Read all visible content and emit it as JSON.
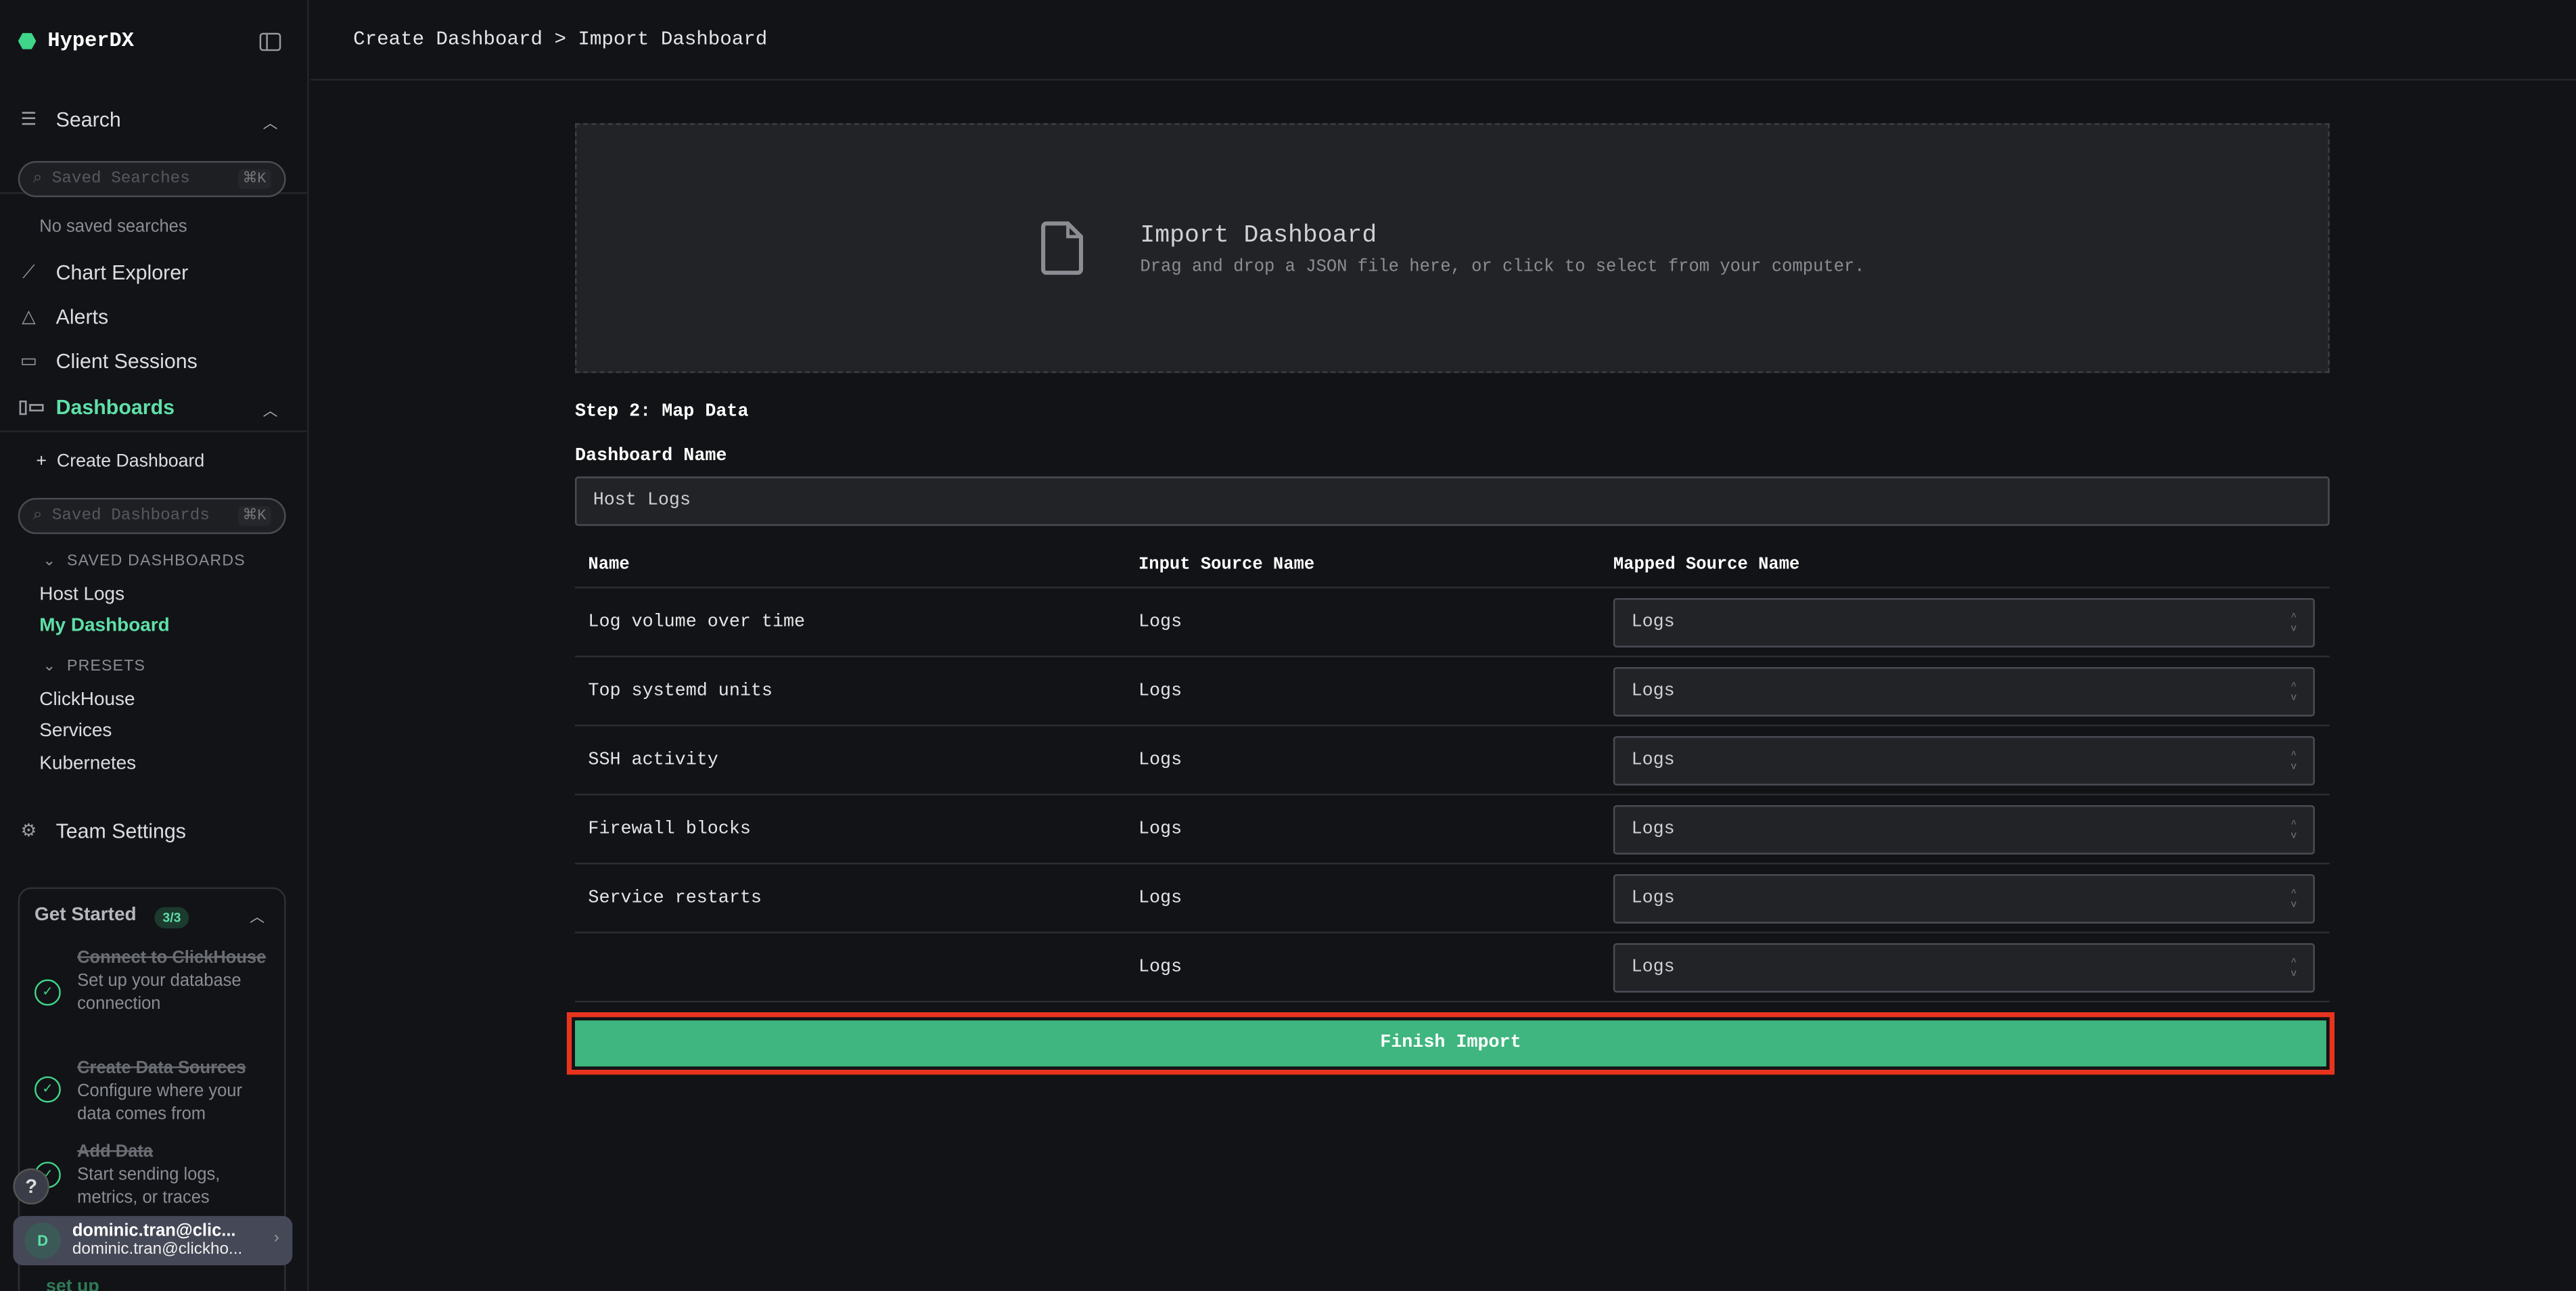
{
  "app": {
    "name": "HyperDX",
    "accent": "#5ee0a9"
  },
  "sidebar": {
    "search": {
      "label": "Search",
      "placeholder": "Saved Searches",
      "shortcut": "⌘K",
      "empty": "No saved searches"
    },
    "nav": [
      {
        "label": "Chart Explorer",
        "icon": "chart-line-icon"
      },
      {
        "label": "Alerts",
        "icon": "bell-icon"
      },
      {
        "label": "Client Sessions",
        "icon": "laptop-icon"
      }
    ],
    "dashboards": {
      "label": "Dashboards",
      "create": "Create Dashboard",
      "placeholder": "Saved Dashboards",
      "shortcut": "⌘K",
      "saved_header": "SAVED DASHBOARDS",
      "saved": [
        "Host Logs",
        "My Dashboard"
      ],
      "presets_header": "PRESETS",
      "presets": [
        "ClickHouse",
        "Services",
        "Kubernetes"
      ]
    },
    "team_settings": "Team Settings",
    "get_started": {
      "title": "Get Started",
      "badge": "3/3",
      "steps": [
        {
          "title": "Connect to ClickHouse",
          "desc": "Set up your database connection"
        },
        {
          "title": "Create Data Sources",
          "desc": "Configure where your data comes from"
        },
        {
          "title": "Add Data",
          "desc": "Start sending logs, metrics, or traces"
        }
      ],
      "done": "set up"
    },
    "user": {
      "initial": "D",
      "name": "dominic.tran@clic...",
      "email": "dominic.tran@clickho..."
    }
  },
  "header": {
    "breadcrumb": "Create Dashboard > Import Dashboard"
  },
  "dropzone": {
    "title": "Import Dashboard",
    "subtitle": "Drag and drop a JSON file here, or click to select from your computer."
  },
  "form": {
    "step": "Step 2: Map Data",
    "name_label": "Dashboard Name",
    "name_value": "Host Logs",
    "columns": [
      "Name",
      "Input Source Name",
      "Mapped Source Name"
    ],
    "rows": [
      {
        "name": "Log volume over time",
        "input": "Logs",
        "mapped": "Logs"
      },
      {
        "name": "Top systemd units",
        "input": "Logs",
        "mapped": "Logs"
      },
      {
        "name": "SSH activity",
        "input": "Logs",
        "mapped": "Logs"
      },
      {
        "name": "Firewall blocks",
        "input": "Logs",
        "mapped": "Logs"
      },
      {
        "name": "Service restarts",
        "input": "Logs",
        "mapped": "Logs"
      },
      {
        "name": "",
        "input": "Logs",
        "mapped": "Logs"
      }
    ],
    "submit": "Finish Import",
    "submit_color": "#3fb67f"
  }
}
